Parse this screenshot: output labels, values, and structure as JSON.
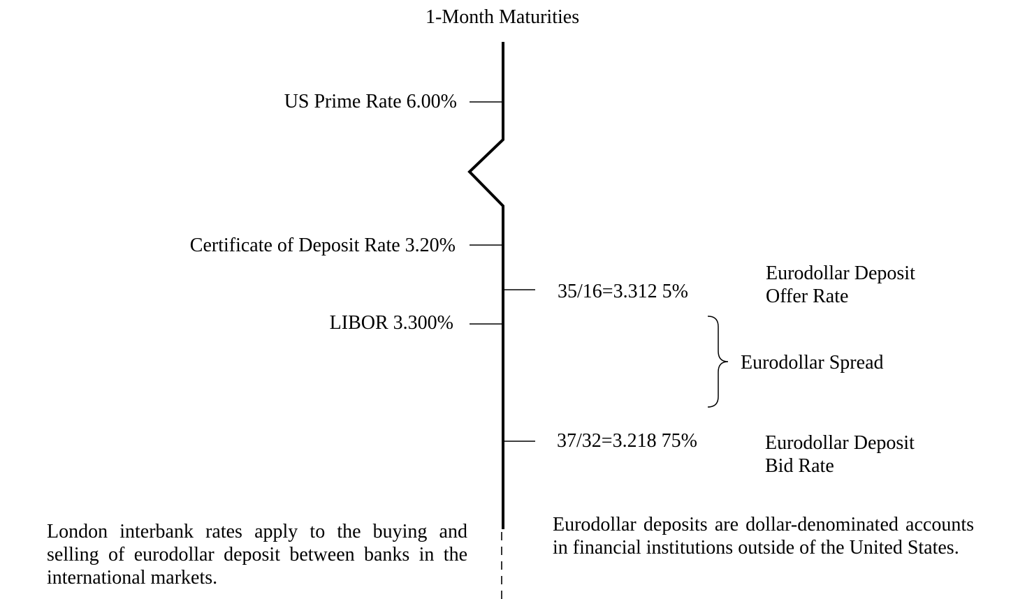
{
  "diagram": {
    "title": "1-Month Maturities",
    "left_rates": [
      {
        "id": "us-prime-rate",
        "label": "US Prime Rate 6.00%"
      },
      {
        "id": "certificate-of-deposit-rate",
        "label": "Certificate of Deposit Rate 3.20%"
      },
      {
        "id": "libor",
        "label": "LIBOR 3.300%"
      }
    ],
    "right_rates": [
      {
        "id": "offer",
        "value": "35/16=3.312 5%",
        "name_line1": "Eurodollar Deposit",
        "name_line2": "Offer Rate"
      },
      {
        "id": "bid",
        "value": "37/32=3.218 75%",
        "name_line1": "Eurodollar Deposit",
        "name_line2": "Bid Rate"
      }
    ],
    "spread_label": "Eurodollar Spread",
    "notes": {
      "left": "London interbank rates apply to the buying and selling of eurodollar deposit between banks in the international markets.",
      "right": "Eurodollar deposits are dollar-denominated accounts in financial institutions outside of the United States."
    },
    "colors": {
      "line": "#000000",
      "background": "#ffffff"
    }
  }
}
